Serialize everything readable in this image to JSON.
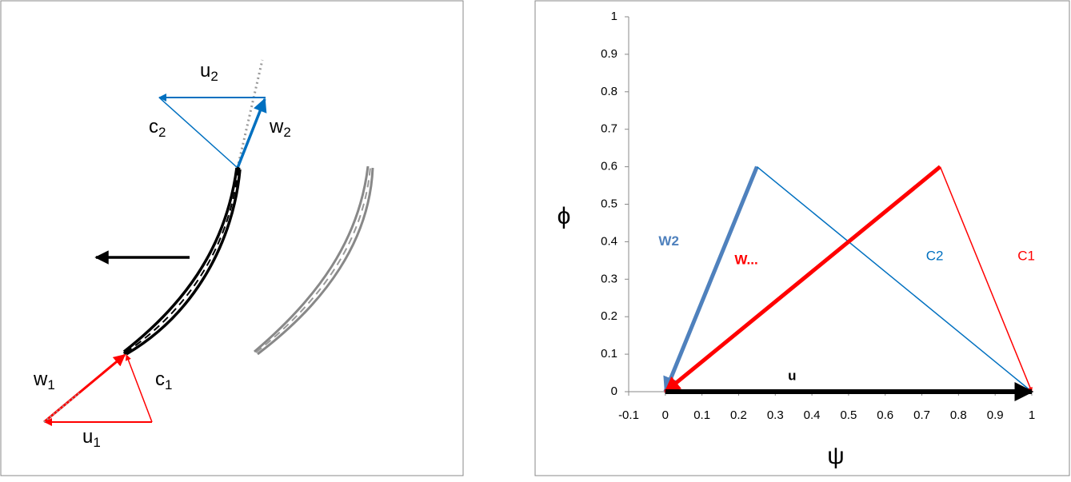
{
  "diagram": {
    "labels": [
      {
        "main": "u",
        "sub": "2"
      },
      {
        "main": "c",
        "sub": "2"
      },
      {
        "main": "w",
        "sub": "2"
      },
      {
        "main": "w",
        "sub": "1"
      },
      {
        "main": "c",
        "sub": "1"
      },
      {
        "main": "u",
        "sub": "1"
      }
    ]
  },
  "chart_data": {
    "type": "line",
    "xlabel": "ψ",
    "ylabel": "ϕ",
    "xlim": [
      -0.1,
      1
    ],
    "ylim": [
      0,
      1
    ],
    "xticks": [
      -0.1,
      0,
      0.1,
      0.2,
      0.3,
      0.4,
      0.5,
      0.6,
      0.7,
      0.8,
      0.9,
      1
    ],
    "yticks": [
      0,
      0.1,
      0.2,
      0.3,
      0.4,
      0.5,
      0.6,
      0.7,
      0.8,
      0.9,
      1
    ],
    "series": [
      {
        "name": "W2",
        "color": "#4f81bd",
        "x": [
          0.25,
          0
        ],
        "values": [
          0.6,
          0
        ]
      },
      {
        "name": "C2",
        "color": "#0070c0",
        "x": [
          0.25,
          1
        ],
        "values": [
          0.6,
          0
        ]
      },
      {
        "name": "C1",
        "color": "#ff0000",
        "x": [
          0.75,
          1
        ],
        "values": [
          0.6,
          0
        ]
      },
      {
        "name": "W...",
        "color": "#ff0000",
        "x": [
          0.75,
          0
        ],
        "values": [
          0.6,
          0
        ]
      },
      {
        "name": "u",
        "color": "#000000",
        "x": [
          0,
          1
        ],
        "values": [
          0,
          0
        ]
      }
    ]
  }
}
